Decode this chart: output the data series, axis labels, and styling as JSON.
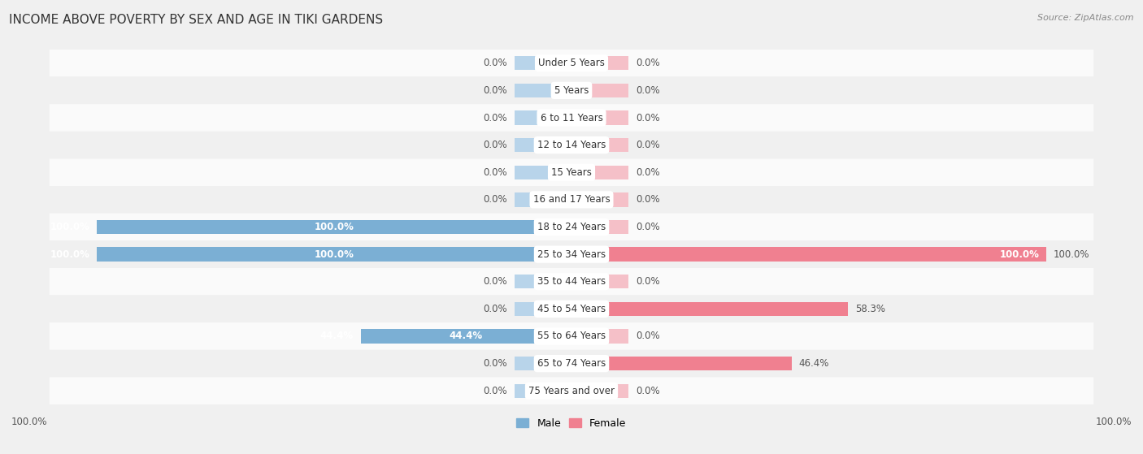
{
  "title": "INCOME ABOVE POVERTY BY SEX AND AGE IN TIKI GARDENS",
  "source": "Source: ZipAtlas.com",
  "categories": [
    "Under 5 Years",
    "5 Years",
    "6 to 11 Years",
    "12 to 14 Years",
    "15 Years",
    "16 and 17 Years",
    "18 to 24 Years",
    "25 to 34 Years",
    "35 to 44 Years",
    "45 to 54 Years",
    "55 to 64 Years",
    "65 to 74 Years",
    "75 Years and over"
  ],
  "male_values": [
    0.0,
    0.0,
    0.0,
    0.0,
    0.0,
    0.0,
    100.0,
    100.0,
    0.0,
    0.0,
    44.4,
    0.0,
    0.0
  ],
  "female_values": [
    0.0,
    0.0,
    0.0,
    0.0,
    0.0,
    0.0,
    0.0,
    100.0,
    0.0,
    58.3,
    0.0,
    46.4,
    0.0
  ],
  "male_color": "#7bafd4",
  "female_color": "#f08090",
  "male_color_light": "#b8d4ea",
  "female_color_light": "#f5c0c8",
  "bar_height": 0.52,
  "bg_color": "#f0f0f0",
  "row_colors": [
    "#fafafa",
    "#f0f0f0"
  ],
  "xlim": 100.0,
  "stub_size": 12.0,
  "title_fontsize": 11,
  "label_fontsize": 8.5,
  "category_fontsize": 8.5
}
